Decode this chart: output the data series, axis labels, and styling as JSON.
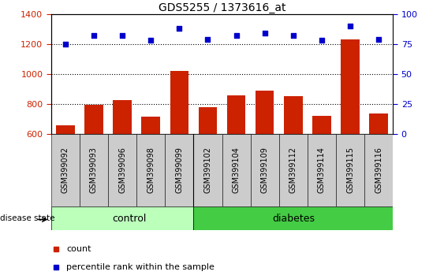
{
  "title": "GDS5255 / 1373616_at",
  "samples": [
    "GSM399092",
    "GSM399093",
    "GSM399096",
    "GSM399098",
    "GSM399099",
    "GSM399102",
    "GSM399104",
    "GSM399109",
    "GSM399112",
    "GSM399114",
    "GSM399115",
    "GSM399116"
  ],
  "counts": [
    660,
    795,
    825,
    715,
    1020,
    780,
    855,
    890,
    850,
    718,
    1230,
    735
  ],
  "percentile_ranks": [
    75,
    82,
    82,
    78,
    88,
    79,
    82,
    84,
    82,
    78,
    90,
    79
  ],
  "control_samples": 5,
  "diabetes_samples": 7,
  "ylim_left": [
    600,
    1400
  ],
  "ylim_right": [
    0,
    100
  ],
  "yticks_left": [
    600,
    800,
    1000,
    1200,
    1400
  ],
  "yticks_right": [
    0,
    25,
    50,
    75,
    100
  ],
  "bar_color": "#cc2200",
  "dot_color": "#0000cc",
  "control_bg_light": "#bbffbb",
  "control_bg": "#55dd55",
  "diabetes_bg": "#44cc44",
  "tick_bg": "#cccccc",
  "legend_count_color": "#cc2200",
  "legend_dot_color": "#0000cc",
  "legend_count_label": "count",
  "legend_percentile_label": "percentile rank within the sample",
  "group_label": "disease state",
  "control_label": "control",
  "diabetes_label": "diabetes",
  "grid_lines": [
    800,
    1000,
    1200
  ]
}
